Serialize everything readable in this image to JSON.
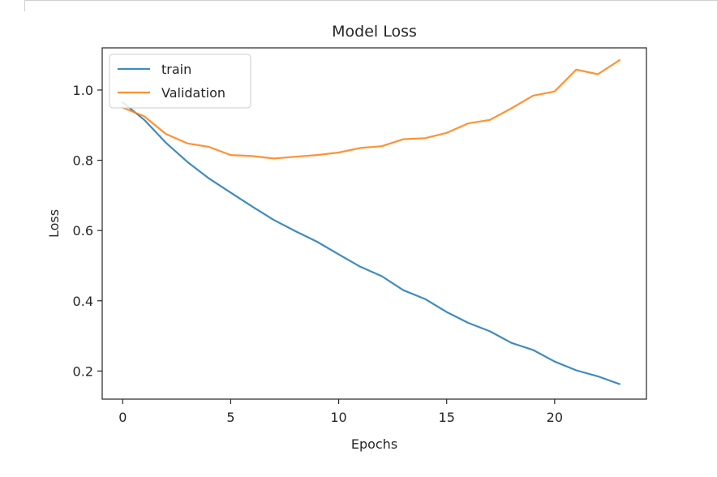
{
  "chart_data": {
    "type": "line",
    "title": "Model Loss",
    "xlabel": "Epochs",
    "ylabel": "Loss",
    "xlim": [
      -0.95,
      24.25
    ],
    "ylim": [
      0.12,
      1.12
    ],
    "xticks": [
      0,
      5,
      10,
      15,
      20
    ],
    "yticks": [
      0.2,
      0.4,
      0.6,
      0.8,
      1.0
    ],
    "xtick_labels": [
      "0",
      "5",
      "10",
      "15",
      "20"
    ],
    "ytick_labels": [
      "0.2",
      "0.4",
      "0.6",
      "0.8",
      "1.0"
    ],
    "grid": false,
    "legend_position": "upper-left",
    "x": [
      0,
      1,
      2,
      3,
      4,
      5,
      6,
      7,
      8,
      9,
      10,
      11,
      12,
      13,
      14,
      15,
      16,
      17,
      18,
      19,
      20,
      21,
      22,
      23
    ],
    "series": [
      {
        "name": "train",
        "color": "#1f77b4",
        "values": [
          0.965,
          0.915,
          0.85,
          0.795,
          0.748,
          0.708,
          0.668,
          0.63,
          0.598,
          0.568,
          0.532,
          0.497,
          0.47,
          0.43,
          0.405,
          0.368,
          0.337,
          0.313,
          0.28,
          0.26,
          0.227,
          0.202,
          0.185,
          0.163
        ]
      },
      {
        "name": "Validation",
        "color": "#ff7f0e",
        "values": [
          0.95,
          0.925,
          0.875,
          0.848,
          0.838,
          0.815,
          0.812,
          0.805,
          0.81,
          0.815,
          0.822,
          0.835,
          0.84,
          0.86,
          0.863,
          0.878,
          0.905,
          0.915,
          0.948,
          0.984,
          0.996,
          1.058,
          1.045,
          1.085
        ]
      }
    ]
  }
}
